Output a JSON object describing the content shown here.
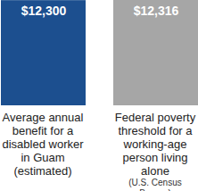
{
  "chart_data": {
    "type": "bar",
    "categories": [
      "Average annual benefit for a disabled worker in Guam (estimated)",
      "Federal poverty threshold for a working-age person living alone (U.S. Census Bureau)"
    ],
    "values": [
      12300,
      12316
    ],
    "value_labels": [
      "$12,300",
      "$12,316"
    ],
    "colors": [
      "#1c4f8f",
      "#a6a6a6"
    ],
    "ylim": [
      0,
      12316
    ],
    "data_labels": true,
    "tick_labels": false,
    "grid": false
  }
}
